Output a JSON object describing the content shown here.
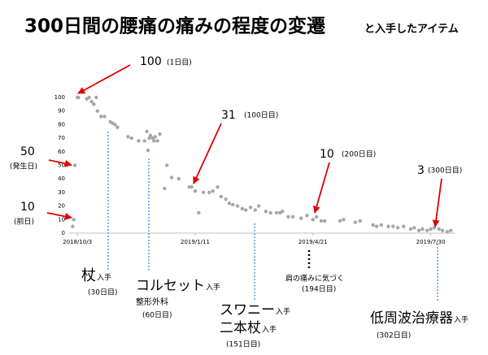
{
  "chart_data": {
    "type": "scatter",
    "title": "300日間の腰痛の痛みの程度の変遷",
    "subtitle": "と入手したアイテム",
    "color": "#a6a6a6",
    "grid": false,
    "x": [
      "2018-09-29",
      "2018-09-30",
      "2018-10-01",
      "2018-10-03",
      "2018-10-04",
      "2018-10-11",
      "2018-10-13",
      "2018-10-15",
      "2018-10-17",
      "2018-10-19",
      "2018-10-20",
      "2018-10-23",
      "2018-10-26",
      "2018-10-31",
      "2018-11-02",
      "2018-11-04",
      "2018-11-06",
      "2018-11-15",
      "2018-11-18",
      "2018-11-24",
      "2018-11-29",
      "2018-12-01",
      "2018-12-02",
      "2018-12-03",
      "2018-12-04",
      "2018-12-06",
      "2018-12-07",
      "2018-12-08",
      "2018-12-10",
      "2018-12-12",
      "2018-12-16",
      "2018-12-18",
      "2018-12-22",
      "2018-12-28",
      "2019-01-06",
      "2019-01-08",
      "2019-01-11",
      "2019-01-14",
      "2019-01-18",
      "2019-01-23",
      "2019-01-26",
      "2019-01-30",
      "2019-02-02",
      "2019-02-06",
      "2019-02-09",
      "2019-02-12",
      "2019-02-16",
      "2019-02-20",
      "2019-02-23",
      "2019-02-27",
      "2019-03-03",
      "2019-03-06",
      "2019-03-12",
      "2019-03-16",
      "2019-03-21",
      "2019-03-24",
      "2019-03-26",
      "2019-03-31",
      "2019-04-04",
      "2019-04-11",
      "2019-04-16",
      "2019-04-21",
      "2019-04-24",
      "2019-04-28",
      "2019-05-01",
      "2019-05-14",
      "2019-05-17",
      "2019-05-27",
      "2019-05-31",
      "2019-06-11",
      "2019-06-14",
      "2019-06-18",
      "2019-06-24",
      "2019-06-28",
      "2019-07-02",
      "2019-07-07",
      "2019-07-13",
      "2019-07-16",
      "2019-07-20",
      "2019-07-23",
      "2019-07-27",
      "2019-07-30",
      "2019-08-02",
      "2019-08-06",
      "2019-08-09",
      "2019-08-13",
      "2019-08-16"
    ],
    "values": [
      5,
      10,
      50,
      100,
      100,
      99,
      100,
      97,
      95,
      100,
      90,
      86,
      86,
      82,
      81,
      80,
      78,
      71,
      70,
      68,
      68,
      75,
      61,
      70,
      72,
      70,
      68,
      71,
      68,
      73,
      33,
      50,
      41,
      40,
      34,
      34,
      31,
      15,
      30,
      30,
      31,
      34,
      27,
      25,
      22,
      21,
      20,
      18,
      17,
      19,
      17,
      20,
      16,
      15,
      15,
      15,
      16,
      12,
      12,
      11,
      13,
      10,
      12,
      9,
      9,
      9,
      10,
      8,
      9,
      6,
      5,
      6,
      5,
      5,
      4,
      5,
      3,
      4,
      2,
      3,
      2,
      3,
      4,
      3,
      2,
      1,
      2
    ],
    "xlim": [
      "2018-09-26",
      "2019-08-20"
    ],
    "xticks": [
      {
        "value": "2018-10-03",
        "label": "2018/10/3"
      },
      {
        "value": "2019-01-11",
        "label": "2019/1/11"
      },
      {
        "value": "2019-04-21",
        "label": "2019/4/21"
      },
      {
        "value": "2019-07-30",
        "label": "2019/7/30"
      }
    ],
    "ylim": [
      0,
      100
    ],
    "yticks": [
      0,
      10,
      20,
      30,
      40,
      50,
      60,
      70,
      80,
      90,
      100
    ],
    "annotations": [
      {
        "value": "100",
        "note": "(1日目)"
      },
      {
        "value": "31",
        "note": "(100日目)"
      },
      {
        "value": "50",
        "note": "(発生日)"
      },
      {
        "value": "10",
        "note": "(前日)"
      },
      {
        "value": "10",
        "note": "(200日目)"
      },
      {
        "value": "3",
        "note": "(300日目)"
      }
    ],
    "items": [
      {
        "lines": [
          [
            "杖",
            "入手"
          ],
          [
            "(30日目)"
          ]
        ]
      },
      {
        "lines": [
          [
            "コルセット",
            "入手"
          ],
          [
            "整形外科"
          ],
          [
            "(60日目)"
          ]
        ]
      },
      {
        "lines": [
          [
            "スワニー",
            "入手"
          ],
          [
            "二本杖",
            "入手"
          ],
          [
            "(151日目)"
          ]
        ]
      },
      {
        "lines": [
          [
            "肩の痛みに気づく"
          ],
          [
            "(194日目)"
          ]
        ]
      },
      {
        "lines": [
          [
            "低周波治療器",
            "入手"
          ],
          [
            "(302日目)"
          ]
        ]
      }
    ]
  }
}
